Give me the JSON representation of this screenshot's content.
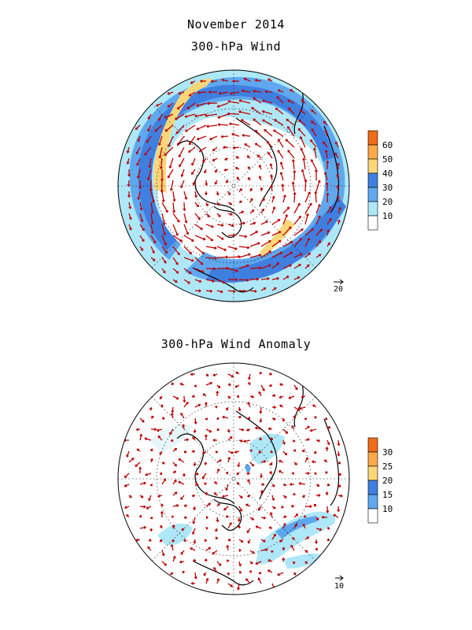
{
  "figure": {
    "title": "November 2014",
    "subtitle": "300-hPa Wind"
  },
  "panels": [
    {
      "id": "wind",
      "reference_vector": {
        "label": "20"
      },
      "colorbar": {
        "ticks": [
          "60",
          "50",
          "40",
          "30",
          "20",
          "10"
        ],
        "colors": [
          "#f06b1a",
          "#ffa94a",
          "#fbd77a",
          "#3f7fe0",
          "#5fa8ee",
          "#aee8f8",
          "#ffffff"
        ]
      },
      "field_colors": {
        "light": "#aee8f8",
        "medium": "#5fa8ee",
        "dark": "#3f7fe0",
        "yellow": "#fbd77a",
        "orange": "#ffa94a"
      },
      "arrow_color": "#c00000"
    },
    {
      "id": "anomaly",
      "title": "300-hPa Wind Anomaly",
      "reference_vector": {
        "label": "10"
      },
      "colorbar": {
        "ticks": [
          "30",
          "25",
          "20",
          "15",
          "10"
        ],
        "colors": [
          "#f06b1a",
          "#ffa94a",
          "#fbd77a",
          "#3f7fe0",
          "#5fa8ee",
          "#ffffff"
        ]
      },
      "field_colors": {
        "light": "#aee8f8",
        "medium": "#5fa8ee",
        "dark": "#3f7fe0"
      },
      "arrow_color": "#c00000"
    }
  ]
}
